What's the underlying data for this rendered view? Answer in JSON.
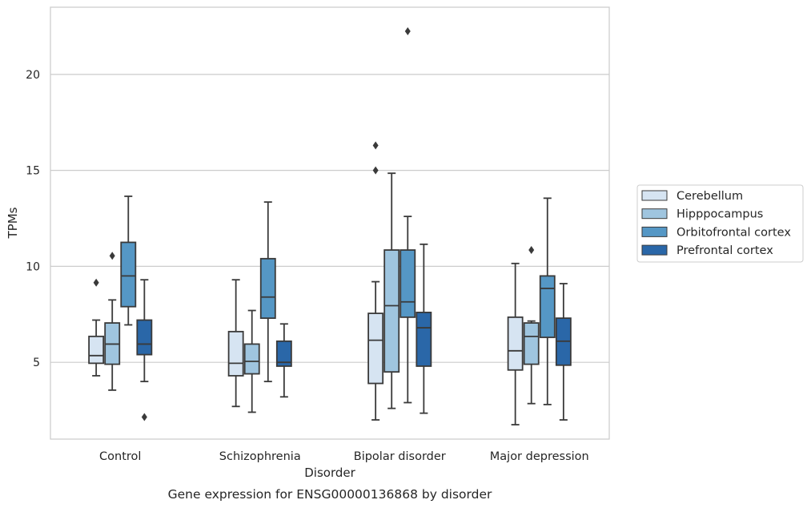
{
  "chart_data": {
    "type": "boxplot",
    "title": "Gene expression for ENSG00000136868 by disorder",
    "xlabel": "Disorder",
    "ylabel": "TPMs",
    "ylim": [
      1.0,
      23.5
    ],
    "yticks": [
      5,
      10,
      15,
      20
    ],
    "grid": "horizontal",
    "legend_position": "right",
    "categories": [
      "Control",
      "Schizophrenia",
      "Bipolar disorder",
      "Major depression"
    ],
    "series": [
      {
        "name": "Cerebellum",
        "color": "#d6e4f2",
        "stats": [
          {
            "whisker_low": 4.3,
            "q1": 4.95,
            "median": 5.35,
            "q3": 6.35,
            "whisker_high": 7.2,
            "outliers": [
              9.15
            ]
          },
          {
            "whisker_low": 2.7,
            "q1": 4.3,
            "median": 4.95,
            "q3": 6.6,
            "whisker_high": 9.3,
            "outliers": []
          },
          {
            "whisker_low": 2.0,
            "q1": 3.9,
            "median": 6.15,
            "q3": 7.55,
            "whisker_high": 9.2,
            "outliers": [
              15.0,
              16.3
            ]
          },
          {
            "whisker_low": 1.75,
            "q1": 4.6,
            "median": 5.6,
            "q3": 7.35,
            "whisker_high": 10.15,
            "outliers": []
          }
        ]
      },
      {
        "name": "Hipppocampus",
        "color": "#9fc5df",
        "stats": [
          {
            "whisker_low": 3.55,
            "q1": 4.9,
            "median": 5.95,
            "q3": 7.05,
            "whisker_high": 8.25,
            "outliers": [
              10.55
            ]
          },
          {
            "whisker_low": 2.4,
            "q1": 4.4,
            "median": 5.05,
            "q3": 5.95,
            "whisker_high": 7.7,
            "outliers": []
          },
          {
            "whisker_low": 2.6,
            "q1": 4.5,
            "median": 7.95,
            "q3": 10.85,
            "whisker_high": 14.85,
            "outliers": []
          },
          {
            "whisker_low": 2.85,
            "q1": 4.9,
            "median": 6.35,
            "q3": 7.05,
            "whisker_high": 7.15,
            "outliers": [
              10.85
            ]
          }
        ]
      },
      {
        "name": "Orbitofrontal cortex",
        "color": "#5597c5",
        "stats": [
          {
            "whisker_low": 6.95,
            "q1": 7.9,
            "median": 9.5,
            "q3": 11.25,
            "whisker_high": 13.65,
            "outliers": []
          },
          {
            "whisker_low": 4.0,
            "q1": 7.3,
            "median": 8.4,
            "q3": 10.4,
            "whisker_high": 13.35,
            "outliers": []
          },
          {
            "whisker_low": 2.9,
            "q1": 7.35,
            "median": 8.15,
            "q3": 10.85,
            "whisker_high": 12.6,
            "outliers": [
              22.25
            ]
          },
          {
            "whisker_low": 2.8,
            "q1": 6.3,
            "median": 8.85,
            "q3": 9.5,
            "whisker_high": 13.55,
            "outliers": []
          }
        ]
      },
      {
        "name": "Prefrontal cortex",
        "color": "#2a67a8",
        "stats": [
          {
            "whisker_low": 4.0,
            "q1": 5.4,
            "median": 5.95,
            "q3": 7.2,
            "whisker_high": 9.3,
            "outliers": [
              2.15
            ]
          },
          {
            "whisker_low": 3.2,
            "q1": 4.8,
            "median": 5.0,
            "q3": 6.1,
            "whisker_high": 7.0,
            "outliers": []
          },
          {
            "whisker_low": 2.35,
            "q1": 4.8,
            "median": 6.8,
            "q3": 7.6,
            "whisker_high": 11.15,
            "outliers": []
          },
          {
            "whisker_low": 2.0,
            "q1": 4.85,
            "median": 6.1,
            "q3": 7.3,
            "whisker_high": 9.1,
            "outliers": []
          }
        ]
      }
    ]
  }
}
